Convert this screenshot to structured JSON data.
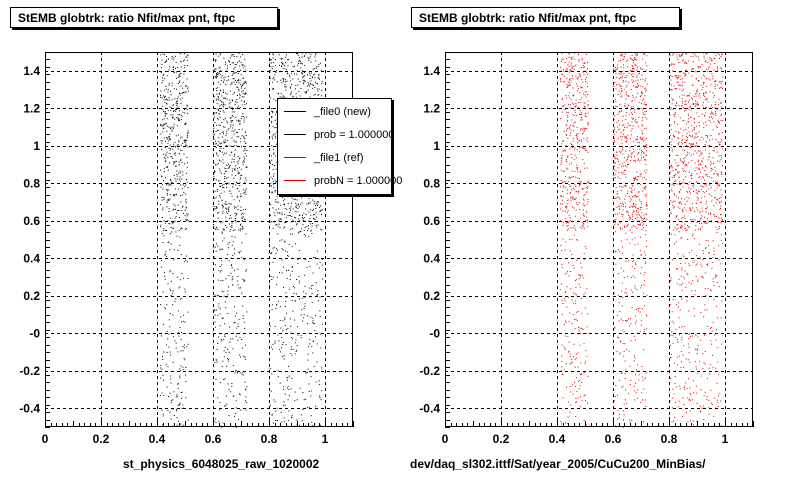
{
  "canvas": {
    "background": "#ffffff"
  },
  "chart_data": [
    {
      "type": "scatter",
      "title": "StEMB globtrk: ratio Nfit/max pnt, ftpc",
      "xlabel": "st_physics_6048025_raw_1020002",
      "ylabel": "",
      "xlim": [
        0,
        1.1
      ],
      "ylim": [
        -0.5,
        1.5
      ],
      "grid": true,
      "xticks": [
        "0",
        "0.2",
        "0.4",
        "0.6",
        "0.8",
        "1"
      ],
      "yticks": [
        "-0.4",
        "-0.2",
        "-0",
        "0.2",
        "0.4",
        "0.6",
        "0.8",
        "1",
        "1.2",
        "1.4"
      ],
      "series": [
        {
          "name": "_file0 (new)",
          "color": "#000000",
          "bands": [
            [
              0.41,
              0.51
            ],
            [
              0.6,
              0.72
            ],
            [
              0.8,
              0.99
            ]
          ]
        }
      ],
      "legend": {
        "placement": "top-right",
        "entries": [
          {
            "label": "_file0 (new)",
            "color": "#000000"
          },
          {
            "label": "prob = 1.000000",
            "color": "#000000"
          },
          {
            "label": "_file1 (ref)",
            "color": "#cc0000"
          },
          {
            "label": "probN = 1.000000",
            "color": "#cc0000"
          }
        ]
      }
    },
    {
      "type": "scatter",
      "title": "StEMB globtrk: ratio Nfit/max pnt, ftpc",
      "xlabel": "dev/daq_sl302.ittf/Sat/year_2005/CuCu200_MinBias/",
      "ylabel": "",
      "xlim": [
        0,
        1.1
      ],
      "ylim": [
        -0.5,
        1.5
      ],
      "grid": true,
      "xticks": [
        "0",
        "0.2",
        "0.4",
        "0.6",
        "0.8",
        "1"
      ],
      "yticks": [
        "-0.4",
        "-0.2",
        "-0",
        "0.2",
        "0.4",
        "0.6",
        "0.8",
        "1",
        "1.2",
        "1.4"
      ],
      "series": [
        {
          "name": "_file1 (ref)",
          "color": "#dd0000",
          "bands": [
            [
              0.41,
              0.51
            ],
            [
              0.6,
              0.72
            ],
            [
              0.8,
              0.99
            ]
          ]
        }
      ]
    }
  ]
}
